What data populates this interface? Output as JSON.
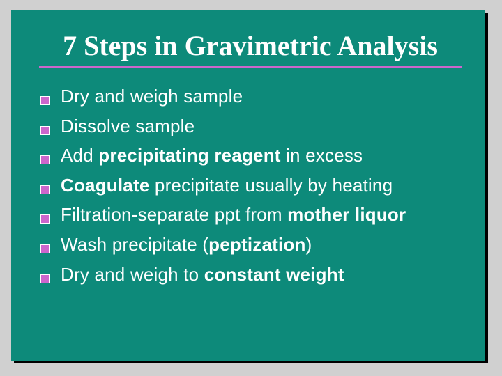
{
  "slide": {
    "background_color": "#0d8a7a",
    "shadow_color": "#000000",
    "page_background": "#d0d0d0",
    "rule_color": "#cc66cc",
    "rule_width": 3,
    "title": {
      "text": "7 Steps in Gravimetric Analysis",
      "color": "#ffffff",
      "fontsize": 40,
      "font_family": "Times New Roman"
    },
    "bullet": {
      "fill_color": "#cc66cc",
      "outline_color": "#ffffff",
      "size": 13
    },
    "body_text": {
      "color": "#ffffff",
      "fontsize": 26,
      "line_height": 40
    },
    "items": [
      {
        "segments": [
          {
            "t": "Dry and weigh sample",
            "b": false
          }
        ]
      },
      {
        "segments": [
          {
            "t": "Dissolve sample",
            "b": false
          }
        ]
      },
      {
        "segments": [
          {
            "t": "Add ",
            "b": false
          },
          {
            "t": "precipitating reagent",
            "b": true
          },
          {
            "t": " in excess",
            "b": false
          }
        ]
      },
      {
        "segments": [
          {
            "t": "Coagulate",
            "b": true
          },
          {
            "t": " precipitate usually by heating",
            "b": false
          }
        ]
      },
      {
        "segments": [
          {
            "t": "Filtration-separate ppt from ",
            "b": false
          },
          {
            "t": "mother liquor",
            "b": true
          }
        ]
      },
      {
        "segments": [
          {
            "t": "Wash precipitate (",
            "b": false
          },
          {
            "t": "peptization",
            "b": true
          },
          {
            "t": ")",
            "b": false
          }
        ]
      },
      {
        "segments": [
          {
            "t": "Dry and weigh to ",
            "b": false
          },
          {
            "t": "constant weight",
            "b": true
          }
        ]
      }
    ]
  }
}
